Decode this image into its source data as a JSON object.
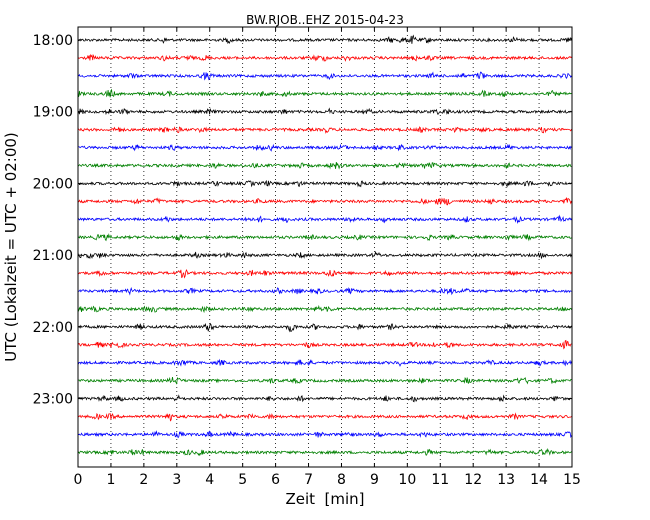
{
  "chart_data": {
    "type": "line",
    "title": "BW.RJOB..EHZ 2015-04-23",
    "xlabel": "Zeit  [min]",
    "ylabel": "UTC (Lokalzeit = UTC + 02:00)",
    "xlim": [
      0,
      15
    ],
    "x_ticks": [
      "0",
      "1",
      "2",
      "3",
      "4",
      "5",
      "6",
      "7",
      "8",
      "9",
      "10",
      "11",
      "12",
      "13",
      "14",
      "15"
    ],
    "y_tick_labels": [
      "18:00",
      "19:00",
      "20:00",
      "21:00",
      "22:00",
      "23:00"
    ],
    "row_minutes": 15,
    "start_time": "18:00",
    "end_time": "24:00",
    "grid": "vertical dotted",
    "colors": [
      "#000000",
      "#ff0000",
      "#0000ff",
      "#008000"
    ],
    "series": [
      {
        "start": "18:00"
      },
      {
        "start": "18:15"
      },
      {
        "start": "18:30"
      },
      {
        "start": "18:45"
      },
      {
        "start": "19:00"
      },
      {
        "start": "19:15"
      },
      {
        "start": "19:30"
      },
      {
        "start": "19:45"
      },
      {
        "start": "20:00"
      },
      {
        "start": "20:15"
      },
      {
        "start": "20:30"
      },
      {
        "start": "20:45"
      },
      {
        "start": "21:00"
      },
      {
        "start": "21:15"
      },
      {
        "start": "21:30"
      },
      {
        "start": "21:45"
      },
      {
        "start": "22:00"
      },
      {
        "start": "22:15"
      },
      {
        "start": "22:30"
      },
      {
        "start": "22:45"
      },
      {
        "start": "23:00"
      },
      {
        "start": "23:15"
      },
      {
        "start": "23:30"
      },
      {
        "start": "23:45"
      }
    ]
  }
}
